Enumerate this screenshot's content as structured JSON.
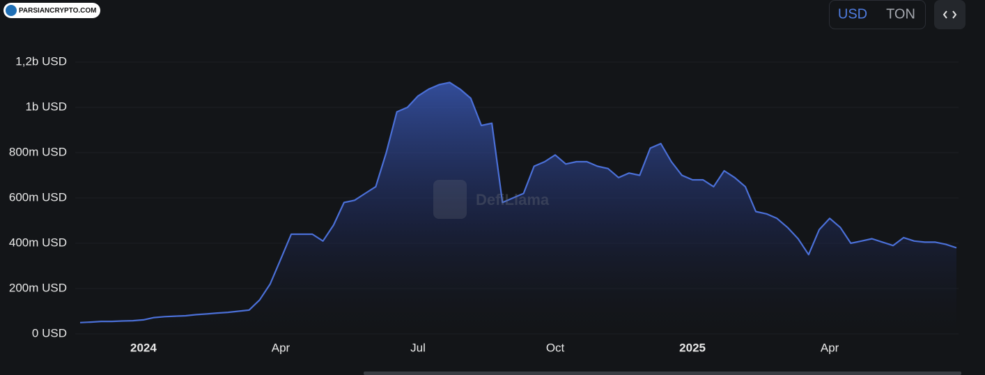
{
  "source_badge": "PARSIANCRYPTO.COM",
  "currency_options": [
    "USD",
    "TON"
  ],
  "watermark": "DefiLlama",
  "chart_data": {
    "type": "area",
    "categories": [
      null,
      null,
      null,
      null,
      null,
      null,
      "2024",
      null,
      null,
      null,
      null,
      null,
      null,
      null,
      null,
      null,
      null,
      null,
      null,
      "Apr",
      null,
      null,
      null,
      null,
      null,
      null,
      null,
      null,
      null,
      null,
      null,
      null,
      "Jul",
      null,
      null,
      null,
      null,
      null,
      null,
      null,
      null,
      null,
      null,
      null,
      null,
      "Oct",
      null,
      null,
      null,
      null,
      null,
      null,
      null,
      null,
      null,
      null,
      null,
      null,
      "2025",
      null,
      null,
      null,
      null,
      null,
      null,
      null,
      null,
      null,
      null,
      null,
      null,
      "Apr",
      null,
      null,
      null,
      null,
      null,
      null,
      null,
      null,
      null,
      null,
      null,
      null
    ],
    "values": [
      50000000,
      52000000,
      55000000,
      55000000,
      57000000,
      58000000,
      62000000,
      72000000,
      76000000,
      78000000,
      80000000,
      85000000,
      88000000,
      92000000,
      95000000,
      100000000,
      105000000,
      150000000,
      220000000,
      330000000,
      440000000,
      440000000,
      440000000,
      410000000,
      480000000,
      580000000,
      590000000,
      620000000,
      650000000,
      800000000,
      980000000,
      1000000000,
      1050000000,
      1080000000,
      1100000000,
      1110000000,
      1080000000,
      1040000000,
      920000000,
      930000000,
      580000000,
      600000000,
      620000000,
      740000000,
      760000000,
      790000000,
      750000000,
      760000000,
      760000000,
      740000000,
      730000000,
      690000000,
      710000000,
      700000000,
      820000000,
      840000000,
      760000000,
      700000000,
      680000000,
      680000000,
      650000000,
      720000000,
      690000000,
      650000000,
      540000000,
      530000000,
      510000000,
      470000000,
      420000000,
      350000000,
      460000000,
      510000000,
      470000000,
      400000000,
      410000000,
      420000000,
      405000000,
      390000000,
      425000000,
      410000000,
      405000000,
      405000000,
      395000000,
      380000000
    ],
    "color": "#4b70d8",
    "ylim": [
      0,
      1200000000
    ],
    "yticks": [
      {
        "value": 0,
        "label": "0 USD"
      },
      {
        "value": 200000000,
        "label": "200m USD"
      },
      {
        "value": 400000000,
        "label": "400m USD"
      },
      {
        "value": 600000000,
        "label": "600m USD"
      },
      {
        "value": 800000000,
        "label": "800m USD"
      },
      {
        "value": 1000000000,
        "label": "1b USD"
      },
      {
        "value": 1200000000,
        "label": "1,2b USD"
      }
    ],
    "grid": true
  }
}
